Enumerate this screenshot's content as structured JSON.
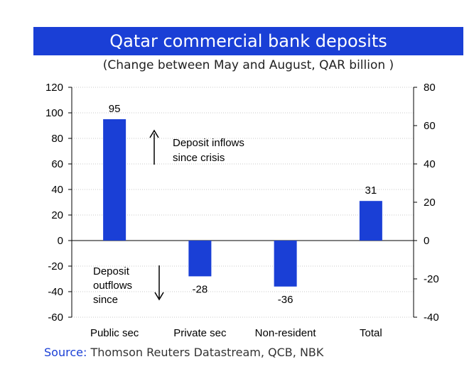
{
  "title": "Qatar commercial bank deposits",
  "subtitle": "(Change between May and August, QAR billion )",
  "source": {
    "label": "Source:",
    "text": "Thomson Reuters Datastream, QCB, NBK"
  },
  "colors": {
    "bar": "#1a3fd6",
    "title_bg": "#1a3fd6",
    "grid": "#c8c8c8"
  },
  "chart_data": {
    "type": "bar",
    "title": "Qatar commercial bank deposits",
    "subtitle": "(Change between May and August, QAR billion )",
    "categories": [
      "Public sec",
      "Private sec",
      "Non-resident",
      "Total"
    ],
    "values": [
      95,
      -28,
      -36,
      31
    ],
    "data_labels": [
      "95",
      "-28",
      "-36",
      "31"
    ],
    "ylim": [
      -60,
      120
    ],
    "yticks": [
      -60,
      -40,
      -20,
      0,
      20,
      40,
      60,
      80,
      100,
      120
    ],
    "y2lim": [
      -40,
      80
    ],
    "y2ticks": [
      -40,
      -20,
      0,
      20,
      40,
      60,
      80
    ],
    "grid": true,
    "xlabel": "",
    "ylabel": "",
    "annotations": [
      {
        "text_lines": [
          "Deposit inflows",
          "since crisis"
        ],
        "arrow": "up"
      },
      {
        "text_lines": [
          "Deposit",
          "outflows",
          "since"
        ],
        "arrow": "down"
      }
    ]
  }
}
